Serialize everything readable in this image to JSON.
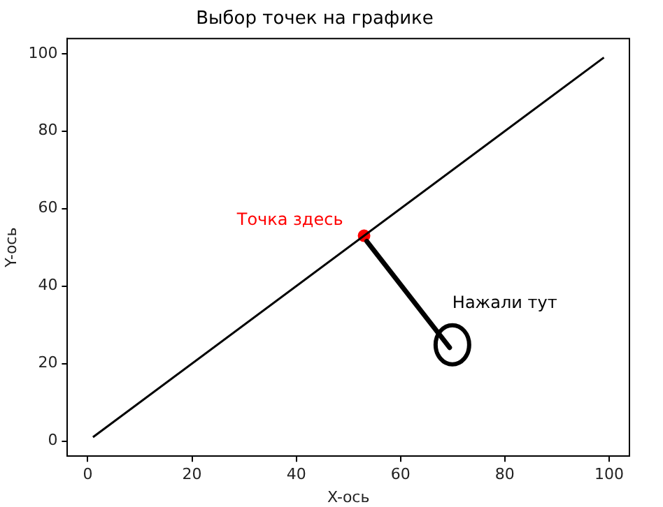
{
  "chart_data": {
    "type": "line",
    "title": "Выбор точек на графике",
    "xlabel": "X-ось",
    "ylabel": "Y-ось",
    "xlim": [
      -3.9,
      103.9
    ],
    "ylim": [
      -3.9,
      103.9
    ],
    "xticks": [
      0,
      20,
      40,
      60,
      80,
      100
    ],
    "yticks": [
      0,
      20,
      40,
      60,
      80,
      100
    ],
    "grid": false,
    "legend": false,
    "series": [
      {
        "color": "#000000",
        "x": [
          1,
          99
        ],
        "values": [
          1,
          99
        ],
        "marker": "none",
        "line_style": "solid"
      },
      {
        "type": "scatter",
        "color": "#ff0000",
        "x": [
          53
        ],
        "values": [
          53
        ],
        "marker": "circle"
      }
    ],
    "annotations": [
      {
        "text": "Точка здесь",
        "x": 53,
        "y": 53
      },
      "Нажали тут"
    ]
  }
}
